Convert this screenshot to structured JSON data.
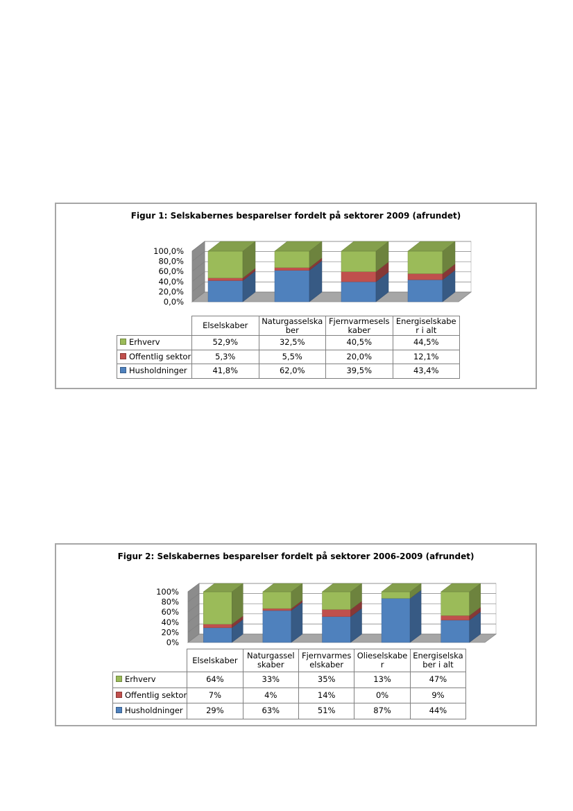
{
  "chart_data": [
    {
      "type": "bar",
      "stacked": true,
      "percent_stacked": true,
      "three_d": true,
      "title": "Figur 1: Selskabernes besparelser fordelt på sektorer 2009 (afrundet)",
      "categories": [
        "Elselskaber",
        "Naturgasselska ber",
        "Fjernvarmesels kaber",
        "Energiselskabe r i alt"
      ],
      "series": [
        {
          "name": "Erhverv",
          "color": "#9bbb59",
          "values": [
            52.9,
            32.5,
            40.5,
            44.5
          ],
          "labels": [
            "52,9%",
            "32,5%",
            "40,5%",
            "44,5%"
          ]
        },
        {
          "name": "Offentlig sektor",
          "color": "#c0504d",
          "values": [
            5.3,
            5.5,
            20.0,
            12.1
          ],
          "labels": [
            "5,3%",
            "5,5%",
            "20,0%",
            "12,1%"
          ]
        },
        {
          "name": "Husholdninger",
          "color": "#4f81bd",
          "values": [
            41.8,
            62.0,
            39.5,
            43.4
          ],
          "labels": [
            "41,8%",
            "62,0%",
            "39,5%",
            "43,4%"
          ]
        }
      ],
      "y_ticks": [
        "0,0%",
        "20,0%",
        "40,0%",
        "60,0%",
        "80,0%",
        "100,0%"
      ],
      "ylim": [
        0,
        100
      ],
      "grid": true,
      "legend": "data table"
    },
    {
      "type": "bar",
      "stacked": true,
      "percent_stacked": true,
      "three_d": true,
      "title": "Figur 2: Selskabernes besparelser fordelt på sektorer 2006-2009 (afrundet)",
      "categories": [
        "Elselskaber",
        "Naturgassel skaber",
        "Fjernvarmes elskaber",
        "Olieselskabe r",
        "Energiselska ber i alt"
      ],
      "series": [
        {
          "name": "Erhverv",
          "color": "#9bbb59",
          "values": [
            64,
            33,
            35,
            13,
            47
          ],
          "labels": [
            "64%",
            "33%",
            "35%",
            "13%",
            "47%"
          ]
        },
        {
          "name": "Offentlig sektor",
          "color": "#c0504d",
          "values": [
            7,
            4,
            14,
            0,
            9
          ],
          "labels": [
            "7%",
            "4%",
            "14%",
            "0%",
            "9%"
          ]
        },
        {
          "name": "Husholdninger",
          "color": "#4f81bd",
          "values": [
            29,
            63,
            51,
            87,
            44
          ],
          "labels": [
            "29%",
            "63%",
            "51%",
            "87%",
            "44%"
          ]
        }
      ],
      "y_ticks": [
        "0%",
        "20%",
        "40%",
        "60%",
        "80%",
        "100%"
      ],
      "ylim": [
        0,
        100
      ],
      "grid": true,
      "legend": "data table"
    }
  ],
  "figures": [
    {
      "categories_display": [
        [
          "Elselskaber"
        ],
        [
          "Naturgasselska",
          "ber"
        ],
        [
          "Fjernvarmesels",
          "kaber"
        ],
        [
          "Energiselskabe",
          "r i alt"
        ]
      ]
    },
    {
      "categories_display": [
        [
          "Elselskaber"
        ],
        [
          "Naturgassel",
          "skaber"
        ],
        [
          "Fjernvarmes",
          "elskaber"
        ],
        [
          "Olieselskabe",
          "r"
        ],
        [
          "Energiselska",
          "ber i alt"
        ]
      ]
    }
  ]
}
